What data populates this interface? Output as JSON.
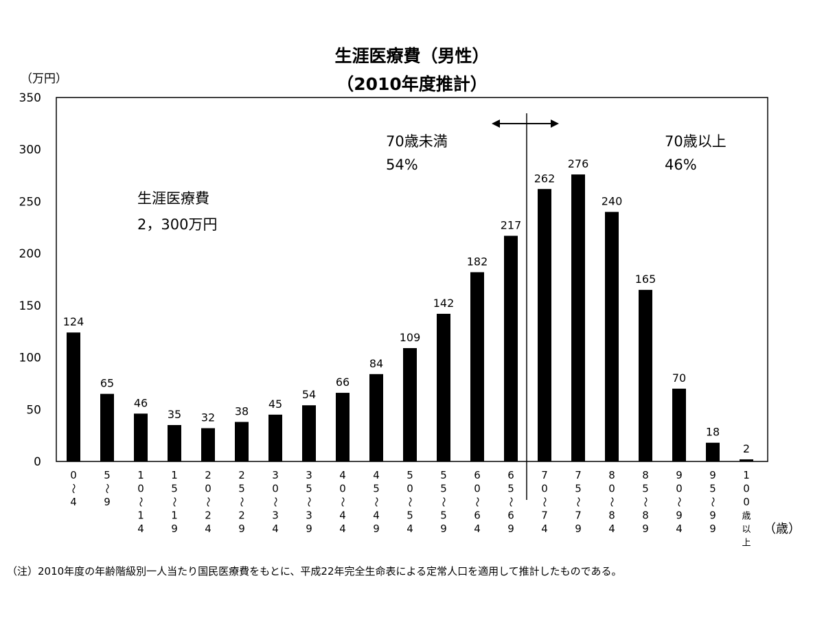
{
  "chart_data": {
    "type": "bar",
    "title": "生涯医療費（男性）",
    "subtitle": "（2010年度推計）",
    "ylabel": "（万円）",
    "xlabel": "（歳）",
    "ylim": [
      0,
      350
    ],
    "yticks": [
      0,
      50,
      100,
      150,
      200,
      250,
      300,
      350
    ],
    "grid": false,
    "categories": [
      "0〜4",
      "5〜9",
      "10〜14",
      "15〜19",
      "20〜24",
      "25〜29",
      "30〜34",
      "35〜39",
      "40〜44",
      "45〜49",
      "50〜54",
      "55〜59",
      "60〜64",
      "65〜69",
      "70〜74",
      "75〜79",
      "80〜84",
      "85〜89",
      "90〜94",
      "95〜99",
      "100歳以上"
    ],
    "values": [
      124,
      65,
      46,
      35,
      32,
      38,
      45,
      54,
      66,
      84,
      109,
      142,
      182,
      217,
      262,
      276,
      240,
      165,
      70,
      18,
      2
    ],
    "bar_color": "#000000",
    "annotations": {
      "under70_label": "70歳未満",
      "under70_pct": "54%",
      "over70_label": "70歳以上",
      "over70_pct": "46%",
      "total_label": "生涯医療費",
      "total_value": "2，300万円"
    }
  },
  "footnote": "（注）2010年度の年齢階級別一人当たり国民医療費をもとに、平成22年完全生命表による定常人口を適用して推計したものである。"
}
